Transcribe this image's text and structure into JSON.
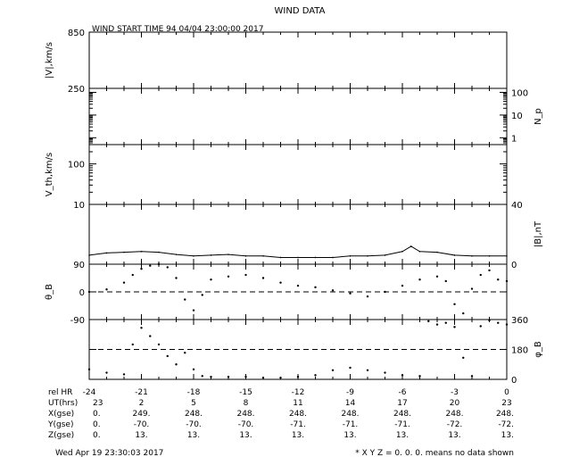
{
  "title": "WIND DATA",
  "start_time": "WIND START TIME  94 04/04 23:00:00 2017",
  "footer": {
    "timestamp": "Wed Apr 19 23:30:03 2017",
    "note": "* X Y Z = 0. 0. 0. means no data shown"
  },
  "chart_data": [
    {
      "type": "line",
      "panel": "speed",
      "ylabel": "|V|,km/s",
      "ylabel_side": "left",
      "tick_labels": [
        "850",
        "250"
      ],
      "ylim": [
        250,
        850
      ],
      "series": [
        {
          "values": []
        }
      ]
    },
    {
      "type": "line",
      "panel": "density",
      "ylabel": "N_p",
      "ylabel_side": "right",
      "scale": "log",
      "tick_labels": [
        "100",
        "10",
        "1"
      ],
      "ylim": [
        0.5,
        150
      ],
      "series": [
        {
          "values": []
        }
      ]
    },
    {
      "type": "line",
      "panel": "thermal-speed",
      "ylabel": "V_th,km/s",
      "ylabel_side": "left",
      "scale": "log",
      "tick_labels": [
        "100",
        "10"
      ],
      "ylim": [
        10,
        300
      ],
      "series": [
        {
          "values": []
        }
      ]
    },
    {
      "type": "line",
      "panel": "magnetic-field",
      "ylabel": "|B|,nT",
      "ylabel_side": "right",
      "tick_labels": [
        "40",
        "0"
      ],
      "ylim": [
        0,
        40
      ],
      "series": [
        {
          "x": [
            -24,
            -23,
            -22,
            -21,
            -20,
            -19,
            -18,
            -17,
            -16,
            -15,
            -14,
            -13,
            -12,
            -11,
            -10,
            -9,
            -8,
            -7,
            -6,
            -5.5,
            -5,
            -4,
            -3,
            -2,
            -1,
            0
          ],
          "values": [
            6,
            7.5,
            8,
            8.5,
            8,
            6.5,
            5.5,
            6,
            6.5,
            5.5,
            5.5,
            4.5,
            4.5,
            4.5,
            4.5,
            5.5,
            5.5,
            6,
            8.5,
            12,
            8.5,
            8,
            6,
            5.5,
            5.5,
            5.5
          ]
        }
      ]
    },
    {
      "type": "scatter",
      "panel": "theta",
      "ylabel": "θ_B",
      "ylabel_side": "left",
      "tick_labels": [
        "90",
        "0",
        "-90"
      ],
      "ylim": [
        -90,
        90
      ],
      "reference_line": 0,
      "series": [
        {
          "x": [
            -24,
            -23,
            -22,
            -21.5,
            -21,
            -20.5,
            -20,
            -19.5,
            -19,
            -18.5,
            -18,
            -17.5,
            -17,
            -16,
            -15,
            -14,
            -13,
            -12,
            -11,
            -10,
            -9,
            -8,
            -7,
            -6,
            -5,
            -4,
            -3.5,
            -3,
            -2.5,
            -2,
            -1.5,
            -1,
            -0.5,
            0
          ],
          "values": [
            0,
            8,
            30,
            55,
            75,
            85,
            90,
            80,
            45,
            -25,
            -60,
            -10,
            40,
            50,
            55,
            45,
            30,
            20,
            15,
            5,
            -5,
            -15,
            0,
            20,
            40,
            50,
            35,
            -40,
            -70,
            10,
            55,
            70,
            40,
            35
          ]
        }
      ]
    },
    {
      "type": "scatter",
      "panel": "phi",
      "ylabel": "φ_B",
      "ylabel_side": "right",
      "tick_labels": [
        "360",
        "180",
        "0"
      ],
      "ylim": [
        0,
        360
      ],
      "reference_line": 180,
      "series": [
        {
          "x": [
            -24,
            -23,
            -22,
            -21.5,
            -21,
            -20.5,
            -20,
            -19.5,
            -19,
            -18.5,
            -18,
            -17.5,
            -17,
            -16,
            -15,
            -14,
            -13,
            -12,
            -11,
            -10,
            -9,
            -8,
            -7,
            -6,
            -5,
            -4.5,
            -4,
            -3.5,
            -3,
            -2.5,
            -2,
            -1.5,
            -1,
            -0.5,
            0
          ],
          "values": [
            60,
            40,
            30,
            210,
            310,
            260,
            210,
            140,
            90,
            160,
            60,
            20,
            15,
            15,
            15,
            10,
            10,
            15,
            25,
            55,
            70,
            55,
            40,
            25,
            20,
            350,
            330,
            340,
            315,
            130,
            20,
            320,
            355,
            340,
            330
          ]
        }
      ]
    }
  ],
  "xaxis": {
    "row_labels": [
      "rel HR",
      "UT(hrs)",
      "X(gse)",
      "Y(gse)",
      "Z(gse)"
    ],
    "rel_hr": [
      "-24",
      "-21",
      "-18",
      "-15",
      "-12",
      "-9",
      "-6",
      "-3",
      "0"
    ],
    "ut_hrs": [
      "23",
      "2",
      "5",
      "8",
      "11",
      "14",
      "17",
      "20",
      "23"
    ],
    "x_gse": [
      "0.",
      "249.",
      "248.",
      "248.",
      "248.",
      "248.",
      "248.",
      "248.",
      "248."
    ],
    "y_gse": [
      "0.",
      "-70.",
      "-70.",
      "-70.",
      "-71.",
      "-71.",
      "-71.",
      "-72.",
      "-72."
    ],
    "z_gse": [
      "0.",
      "13.",
      "13.",
      "13.",
      "13.",
      "13.",
      "13.",
      "13.",
      "13."
    ]
  }
}
